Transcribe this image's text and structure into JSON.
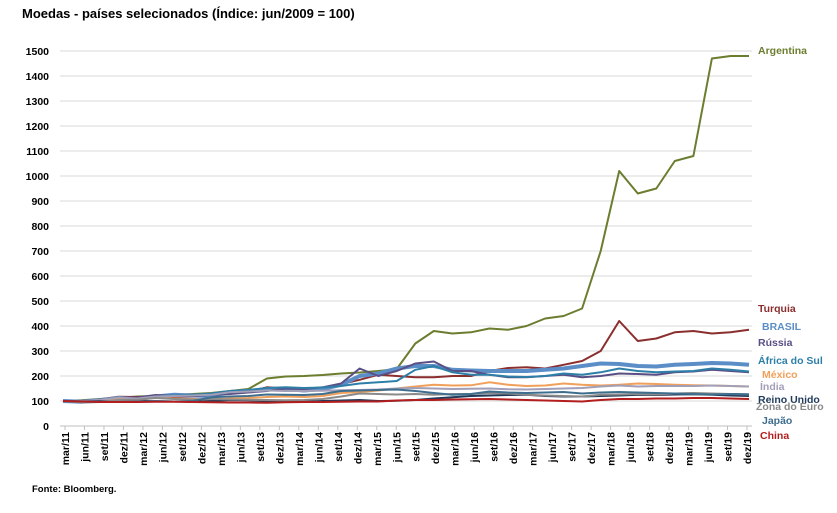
{
  "title": "Moedas - países selecionados (Índice: jun/2009 = 100)",
  "source": "Fonte: Bloomberg.",
  "chart_data": {
    "type": "line",
    "title": "Moedas - países selecionados (Índice: jun/2009 = 100)",
    "ylim": [
      0,
      1500
    ],
    "yticks": [
      0,
      100,
      200,
      300,
      400,
      500,
      600,
      700,
      800,
      900,
      1000,
      1100,
      1200,
      1300,
      1400,
      1500
    ],
    "grid": true,
    "legend": "right, labels at line ends",
    "x_tick_labels": [
      "mar/11",
      "jun/11",
      "set/11",
      "dez/11",
      "mar/12",
      "jun/12",
      "set/12",
      "dez/12",
      "mar/13",
      "jun/13",
      "set/13",
      "dez/13",
      "mar/14",
      "jun/14",
      "set/14",
      "dez/14",
      "mar/15",
      "jun/15",
      "set/15",
      "dez/15",
      "mar/16",
      "jun/16",
      "set/16",
      "dez/16",
      "mar/17",
      "jun/17",
      "set/17",
      "dez/17",
      "mar/18",
      "jun/18",
      "set/18",
      "dez/18",
      "mar/19",
      "jun/19",
      "set/19",
      "dez/19"
    ],
    "series": [
      {
        "name": "Argentina",
        "color": "#6b7d2f",
        "values": [
          100,
          103,
          108,
          113,
          118,
          120,
          124,
          128,
          132,
          140,
          148,
          190,
          198,
          200,
          204,
          210,
          214,
          220,
          228,
          330,
          380,
          370,
          375,
          390,
          385,
          400,
          430,
          440,
          470,
          700,
          1020,
          930,
          950,
          1060,
          1080,
          1470,
          1480,
          1480
        ]
      },
      {
        "name": "Turquia",
        "color": "#8b2e2e",
        "values": [
          100,
          101,
          107,
          117,
          116,
          118,
          117,
          118,
          122,
          130,
          138,
          155,
          150,
          143,
          152,
          168,
          185,
          205,
          200,
          195,
          195,
          200,
          200,
          220,
          232,
          235,
          230,
          245,
          260,
          300,
          420,
          340,
          350,
          375,
          380,
          370,
          375,
          385
        ]
      },
      {
        "name": "BRASIL",
        "color": "#5b8ec7",
        "width": 4,
        "values": [
          100,
          97,
          103,
          112,
          108,
          118,
          125,
          122,
          120,
          136,
          140,
          147,
          148,
          142,
          148,
          165,
          200,
          210,
          230,
          240,
          240,
          225,
          222,
          220,
          220,
          220,
          225,
          230,
          240,
          250,
          248,
          240,
          238,
          245,
          248,
          252,
          250,
          245
        ]
      },
      {
        "name": "Rússia",
        "color": "#5a4f85",
        "values": [
          100,
          96,
          104,
          112,
          114,
          124,
          120,
          118,
          125,
          128,
          134,
          140,
          150,
          148,
          155,
          170,
          230,
          200,
          220,
          250,
          258,
          220,
          220,
          205,
          195,
          195,
          200,
          205,
          195,
          200,
          210,
          208,
          205,
          215,
          218,
          225,
          220,
          215
        ]
      },
      {
        "name": "África do Sul",
        "color": "#2e7fa8",
        "values": [
          100,
          99,
          103,
          114,
          108,
          118,
          122,
          125,
          130,
          140,
          144,
          152,
          155,
          152,
          154,
          160,
          170,
          175,
          180,
          225,
          240,
          215,
          205,
          205,
          198,
          196,
          200,
          210,
          205,
          215,
          230,
          220,
          215,
          218,
          220,
          230,
          225,
          218
        ]
      },
      {
        "name": "México",
        "color": "#f0a05a",
        "values": [
          100,
          96,
          104,
          110,
          106,
          113,
          110,
          108,
          106,
          110,
          112,
          116,
          118,
          116,
          120,
          132,
          136,
          142,
          150,
          158,
          165,
          162,
          163,
          175,
          165,
          160,
          162,
          170,
          165,
          162,
          165,
          170,
          168,
          165,
          163,
          162,
          160,
          158
        ]
      },
      {
        "name": "Índia",
        "color": "#a29fb8",
        "values": [
          100,
          99,
          104,
          114,
          110,
          118,
          120,
          122,
          125,
          135,
          138,
          142,
          140,
          140,
          141,
          143,
          144,
          146,
          150,
          152,
          150,
          148,
          149,
          150,
          147,
          146,
          148,
          150,
          152,
          158,
          162,
          158,
          160,
          160,
          160,
          162,
          160,
          158
        ]
      },
      {
        "name": "Reino Unido",
        "color": "#1f3a5a",
        "values": [
          100,
          98,
          99,
          100,
          101,
          99,
          98,
          97,
          100,
          104,
          103,
          99,
          97,
          98,
          100,
          102,
          104,
          100,
          101,
          104,
          110,
          115,
          120,
          122,
          124,
          125,
          120,
          118,
          118,
          120,
          122,
          125,
          124,
          126,
          127,
          125,
          122,
          120
        ]
      },
      {
        "name": "Zona do Euro",
        "color": "#8a8a8a",
        "values": [
          100,
          94,
          96,
          104,
          105,
          112,
          108,
          106,
          108,
          106,
          105,
          104,
          103,
          104,
          108,
          118,
          130,
          128,
          126,
          128,
          125,
          128,
          128,
          132,
          130,
          125,
          122,
          120,
          118,
          125,
          126,
          128,
          126,
          130,
          132,
          130,
          128,
          126
        ]
      },
      {
        "name": "Japão",
        "color": "#3e6e8e",
        "values": [
          100,
          98,
          96,
          96,
          97,
          100,
          98,
          100,
          115,
          118,
          120,
          126,
          125,
          124,
          128,
          140,
          142,
          144,
          146,
          140,
          132,
          125,
          128,
          138,
          134,
          132,
          134,
          136,
          130,
          134,
          136,
          134,
          132,
          130,
          128,
          126,
          128,
          127
        ]
      },
      {
        "name": "China",
        "color": "#b21d1d",
        "values": [
          100,
          98,
          96,
          96,
          96,
          97,
          97,
          96,
          95,
          94,
          94,
          93,
          95,
          96,
          96,
          97,
          98,
          98,
          102,
          104,
          104,
          106,
          107,
          108,
          106,
          104,
          102,
          100,
          98,
          104,
          108,
          108,
          110,
          110,
          112,
          112,
          110,
          108
        ]
      }
    ]
  },
  "series_labels": [
    "Argentina",
    "Turquia",
    "BRASIL",
    "Rússia",
    "África do Sul",
    "México",
    "Índia",
    "Reino Unido",
    "Zona do Euro",
    "Japão",
    "China"
  ]
}
